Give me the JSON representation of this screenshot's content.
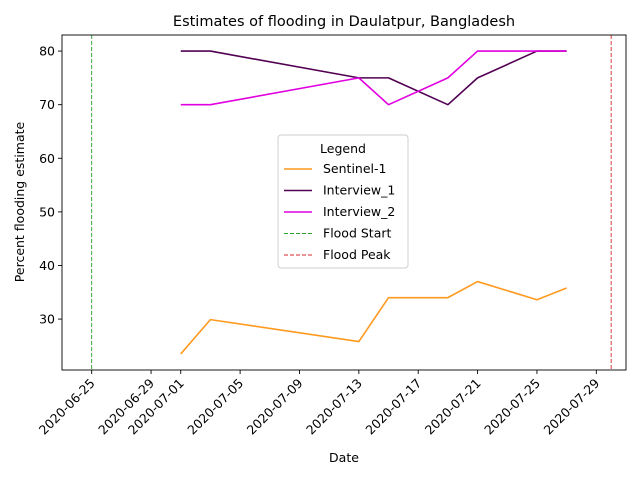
{
  "chart_data": {
    "type": "line",
    "title": "Estimates of flooding in Daulatpur, Bangladesh",
    "xlabel": "Date",
    "ylabel": "Percent flooding estimate",
    "x_axis_type": "date",
    "xlim": [
      "2020-06-23",
      "2020-07-31"
    ],
    "ylim": [
      20.5,
      83
    ],
    "x_ticks": [
      "2020-06-25",
      "2020-06-29",
      "2020-07-01",
      "2020-07-05",
      "2020-07-09",
      "2020-07-13",
      "2020-07-17",
      "2020-07-21",
      "2020-07-25",
      "2020-07-29"
    ],
    "y_ticks": [
      30,
      40,
      50,
      60,
      70,
      80
    ],
    "grid": false,
    "legend": {
      "title": "Legend",
      "placement": "center"
    },
    "series": [
      {
        "name": "Sentinel-1",
        "color": "#ff9a1f",
        "style": "solid",
        "points": [
          [
            "2020-07-01",
            23.5
          ],
          [
            "2020-07-03",
            29.9
          ],
          [
            "2020-07-13",
            25.8
          ],
          [
            "2020-07-15",
            34.0
          ],
          [
            "2020-07-19",
            34.0
          ],
          [
            "2020-07-21",
            37.0
          ],
          [
            "2020-07-25",
            33.6
          ],
          [
            "2020-07-27",
            35.8
          ]
        ]
      },
      {
        "name": "Interview_1",
        "color": "#520052",
        "style": "solid",
        "points": [
          [
            "2020-07-01",
            80
          ],
          [
            "2020-07-03",
            80
          ],
          [
            "2020-07-13",
            75
          ],
          [
            "2020-07-15",
            75
          ],
          [
            "2020-07-19",
            70
          ],
          [
            "2020-07-21",
            75
          ],
          [
            "2020-07-25",
            80
          ],
          [
            "2020-07-27",
            80
          ]
        ]
      },
      {
        "name": "Interview_2",
        "color": "#e000e0",
        "style": "solid",
        "points": [
          [
            "2020-07-01",
            70
          ],
          [
            "2020-07-03",
            70
          ],
          [
            "2020-07-13",
            75
          ],
          [
            "2020-07-15",
            70
          ],
          [
            "2020-07-19",
            75
          ],
          [
            "2020-07-21",
            80
          ],
          [
            "2020-07-25",
            80
          ],
          [
            "2020-07-27",
            80
          ]
        ]
      }
    ],
    "vlines": [
      {
        "name": "Flood Start",
        "date": "2020-06-25",
        "color": "#2ca02c",
        "style": "dashed"
      },
      {
        "name": "Flood Peak",
        "date": "2020-07-30",
        "color": "#d62728",
        "style": "dashed"
      }
    ]
  }
}
